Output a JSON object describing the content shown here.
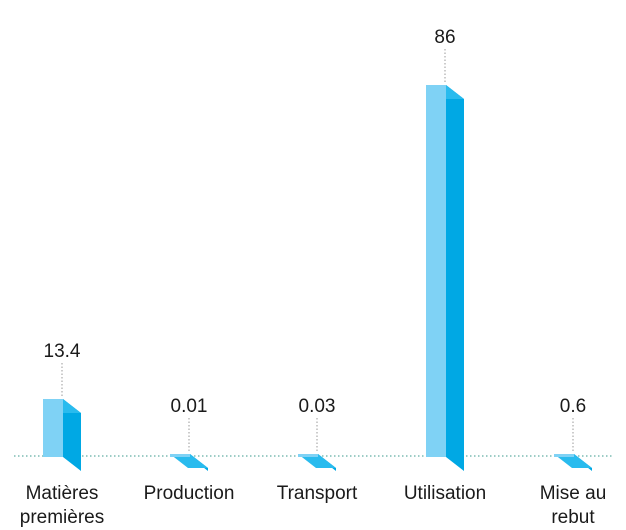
{
  "chart_data": {
    "type": "bar",
    "categories": [
      [
        "Matières",
        "premières"
      ],
      [
        "Production"
      ],
      [
        "Transport"
      ],
      [
        "Utilisation"
      ],
      [
        "Mise au",
        "rebut"
      ]
    ],
    "values": [
      13.4,
      0.01,
      0.03,
      86,
      0.6
    ],
    "value_labels": [
      "13.4",
      "0.01",
      "0.03",
      "86",
      "0.6"
    ],
    "ylim": [
      0,
      86
    ],
    "grid": false,
    "legend": "none",
    "colors": {
      "front": "#7fd2f5",
      "side": "#00a8e4",
      "top": "#29bbee",
      "baseline": "#3a9a8c",
      "leader": "#9a9a9a"
    }
  }
}
